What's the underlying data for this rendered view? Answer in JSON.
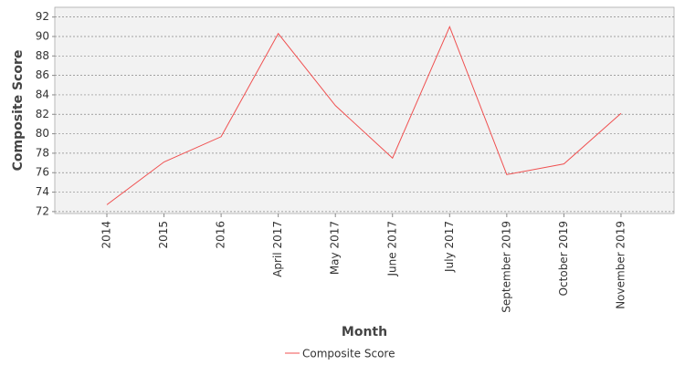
{
  "chart_data": {
    "type": "line",
    "x_label": "Month",
    "y_label": "Composite Score",
    "categories": [
      "2014",
      "2015",
      "2016",
      "April 2017",
      "May 2017",
      "June 2017",
      "July 2017",
      "September 2019",
      "October 2019",
      "November 2019"
    ],
    "series": [
      {
        "name": "Composite Score",
        "color": "#f05050",
        "values": [
          72.7,
          77.1,
          79.7,
          90.3,
          82.9,
          77.5,
          91.0,
          75.8,
          76.9,
          82.1
        ]
      }
    ],
    "ylim": [
      71.8,
      93.0
    ],
    "yticks": [
      72,
      74,
      76,
      78,
      80,
      82,
      84,
      86,
      88,
      90,
      92
    ],
    "grid": true
  }
}
